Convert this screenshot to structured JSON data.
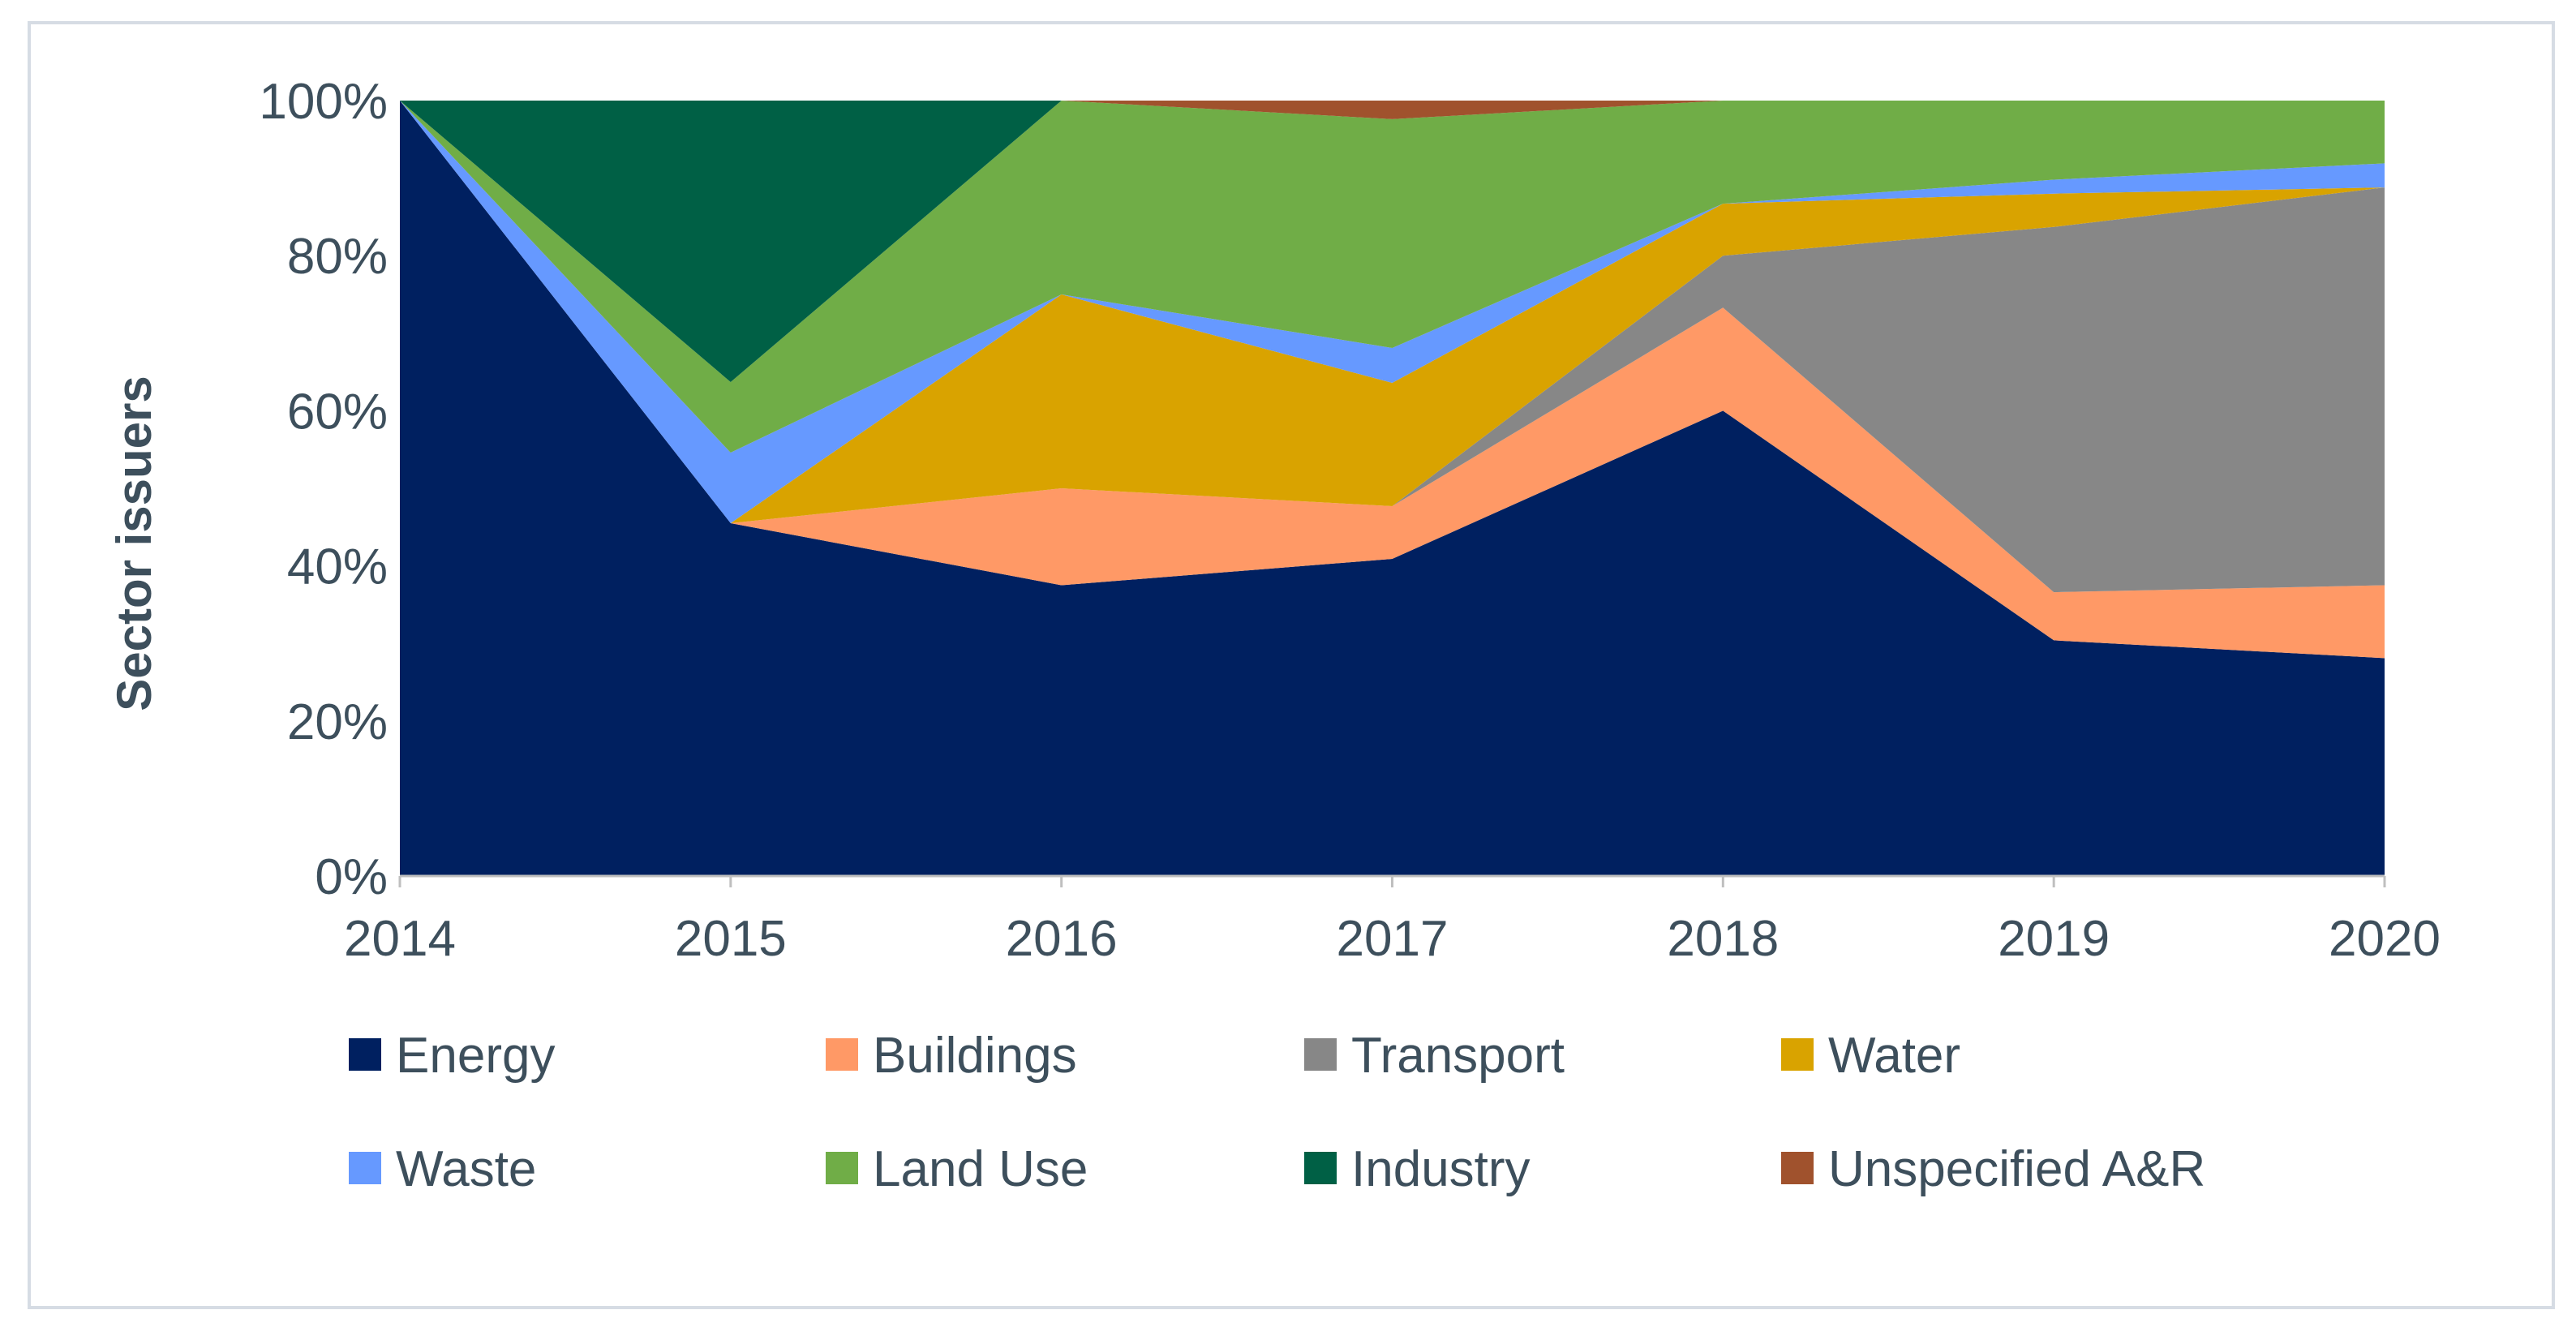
{
  "chart_data": {
    "type": "area",
    "stacked": "percent",
    "x": [
      "2014",
      "2015",
      "2016",
      "2017",
      "2018",
      "2019",
      "2020"
    ],
    "ylabel": "Sector issuers",
    "ylim": [
      0,
      100
    ],
    "yticks": [
      "0%",
      "20%",
      "40%",
      "60%",
      "80%",
      "100%"
    ],
    "grid": false,
    "legend_position": "bottom",
    "series": [
      {
        "name": "Energy",
        "color": "#002060",
        "values": [
          100,
          45.5,
          37.5,
          40.9,
          60,
          30.4,
          28.1
        ]
      },
      {
        "name": "Buildings",
        "color": "#ff9966",
        "values": [
          0,
          0,
          12.5,
          6.8,
          13.3,
          6.2,
          9.4
        ]
      },
      {
        "name": "Transport",
        "color": "#878787",
        "values": [
          0,
          0,
          0,
          0,
          6.7,
          47.1,
          51.3
        ]
      },
      {
        "name": "Water",
        "color": "#d9a300",
        "values": [
          0,
          0,
          25,
          15.9,
          6.7,
          4.3,
          0
        ]
      },
      {
        "name": "Waste",
        "color": "#6699ff",
        "values": [
          0,
          9.1,
          0,
          4.5,
          0,
          1.8,
          3.1
        ]
      },
      {
        "name": "Land Use",
        "color": "#70ad47",
        "values": [
          0,
          9.1,
          25,
          29.5,
          13.3,
          10.2,
          8.1
        ]
      },
      {
        "name": "Industry",
        "color": "#006045",
        "values": [
          0,
          36.3,
          0,
          0,
          0,
          0,
          0
        ]
      },
      {
        "name": "Unspecified A&R",
        "color": "#a0522d",
        "values": [
          0,
          0,
          0,
          2.4,
          0,
          0,
          0
        ]
      }
    ]
  }
}
